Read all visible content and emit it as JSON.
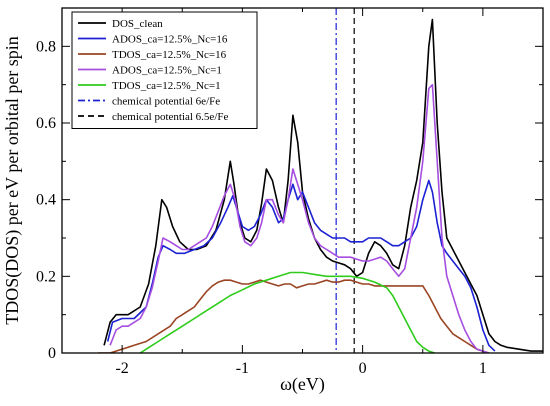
{
  "chart_data": {
    "type": "line",
    "xlabel": "ω(eV)",
    "ylabel": "TDOS(DOS) per eV per orbital per spin",
    "xlim": [
      -2.5,
      1.5
    ],
    "ylim": [
      0,
      0.9
    ],
    "xticks": [
      -2,
      -1,
      0,
      1
    ],
    "xtick_labels": [
      "-2",
      "-1",
      "0",
      "1"
    ],
    "yticks": [
      0,
      0.2,
      0.4,
      0.6,
      0.8
    ],
    "ytick_labels": [
      "0",
      "0.2",
      "0.4",
      "0.6",
      "0.8"
    ],
    "legend_position": "top-left",
    "grid": false,
    "series": [
      {
        "name": "DOS_clean",
        "color": "#000000",
        "dash": "solid",
        "x": [
          -2.15,
          -2.1,
          -2.05,
          -1.95,
          -1.85,
          -1.78,
          -1.72,
          -1.67,
          -1.63,
          -1.58,
          -1.52,
          -1.45,
          -1.38,
          -1.3,
          -1.22,
          -1.15,
          -1.1,
          -1.07,
          -1.03,
          -0.98,
          -0.93,
          -0.88,
          -0.84,
          -0.8,
          -0.75,
          -0.7,
          -0.66,
          -0.62,
          -0.58,
          -0.54,
          -0.5,
          -0.45,
          -0.4,
          -0.35,
          -0.3,
          -0.25,
          -0.2,
          -0.15,
          -0.1,
          -0.05,
          0.0,
          0.05,
          0.1,
          0.15,
          0.2,
          0.25,
          0.3,
          0.35,
          0.4,
          0.45,
          0.5,
          0.55,
          0.58,
          0.62,
          0.66,
          0.7,
          0.75,
          0.8,
          0.85,
          0.9,
          0.95,
          1.0,
          1.05,
          1.1,
          1.15,
          1.2,
          1.3,
          1.4,
          1.5
        ],
        "y": [
          0.02,
          0.08,
          0.1,
          0.1,
          0.12,
          0.18,
          0.28,
          0.4,
          0.38,
          0.33,
          0.29,
          0.27,
          0.27,
          0.28,
          0.32,
          0.4,
          0.5,
          0.44,
          0.35,
          0.3,
          0.29,
          0.32,
          0.39,
          0.48,
          0.45,
          0.38,
          0.34,
          0.45,
          0.62,
          0.55,
          0.42,
          0.35,
          0.3,
          0.27,
          0.25,
          0.24,
          0.235,
          0.23,
          0.22,
          0.2,
          0.21,
          0.26,
          0.29,
          0.28,
          0.26,
          0.23,
          0.22,
          0.28,
          0.38,
          0.45,
          0.55,
          0.8,
          0.87,
          0.6,
          0.42,
          0.3,
          0.27,
          0.24,
          0.21,
          0.18,
          0.15,
          0.1,
          0.05,
          0.03,
          0.02,
          0.015,
          0.01,
          0.005,
          0.005
        ]
      },
      {
        "name": "ADOS_ca=12.5%_Nc=16",
        "color": "#1c22d4",
        "dash": "solid",
        "x": [
          -2.12,
          -2.08,
          -2.0,
          -1.9,
          -1.8,
          -1.75,
          -1.7,
          -1.66,
          -1.6,
          -1.55,
          -1.48,
          -1.4,
          -1.32,
          -1.25,
          -1.18,
          -1.12,
          -1.08,
          -1.04,
          -1.0,
          -0.95,
          -0.9,
          -0.85,
          -0.8,
          -0.75,
          -0.7,
          -0.66,
          -0.62,
          -0.58,
          -0.54,
          -0.5,
          -0.45,
          -0.4,
          -0.35,
          -0.3,
          -0.25,
          -0.2,
          -0.15,
          -0.1,
          -0.05,
          0.0,
          0.05,
          0.1,
          0.15,
          0.2,
          0.25,
          0.3,
          0.35,
          0.4,
          0.45,
          0.5,
          0.55,
          0.58,
          0.62,
          0.66,
          0.7,
          0.75,
          0.8,
          0.85,
          0.9,
          0.95,
          1.0,
          1.05,
          1.1
        ],
        "y": [
          0.03,
          0.08,
          0.09,
          0.09,
          0.12,
          0.18,
          0.25,
          0.28,
          0.27,
          0.26,
          0.26,
          0.27,
          0.28,
          0.3,
          0.34,
          0.38,
          0.41,
          0.37,
          0.33,
          0.32,
          0.33,
          0.36,
          0.4,
          0.38,
          0.34,
          0.35,
          0.4,
          0.44,
          0.4,
          0.42,
          0.38,
          0.34,
          0.32,
          0.31,
          0.3,
          0.3,
          0.3,
          0.29,
          0.29,
          0.29,
          0.3,
          0.3,
          0.3,
          0.29,
          0.28,
          0.28,
          0.29,
          0.3,
          0.33,
          0.4,
          0.45,
          0.42,
          0.34,
          0.28,
          0.26,
          0.24,
          0.22,
          0.2,
          0.17,
          0.12,
          0.06,
          0.02,
          0.005
        ]
      },
      {
        "name": "TDOS_ca=12.5%_Nc=16",
        "color": "#9a4523",
        "dash": "solid",
        "x": [
          -2.2,
          -2.1,
          -2.0,
          -1.9,
          -1.8,
          -1.7,
          -1.6,
          -1.55,
          -1.5,
          -1.45,
          -1.4,
          -1.35,
          -1.3,
          -1.25,
          -1.2,
          -1.15,
          -1.1,
          -1.05,
          -1.0,
          -0.95,
          -0.9,
          -0.85,
          -0.8,
          -0.75,
          -0.7,
          -0.65,
          -0.6,
          -0.55,
          -0.5,
          -0.45,
          -0.4,
          -0.35,
          -0.3,
          -0.25,
          -0.2,
          -0.15,
          -0.1,
          -0.05,
          0.0,
          0.05,
          0.1,
          0.2,
          0.3,
          0.4,
          0.5,
          0.55,
          0.6,
          0.65,
          0.7,
          0.75,
          0.8,
          0.85,
          0.9,
          0.95,
          1.0,
          1.05
        ],
        "y": [
          0.0,
          0.0,
          0.01,
          0.02,
          0.03,
          0.05,
          0.07,
          0.09,
          0.1,
          0.11,
          0.12,
          0.14,
          0.16,
          0.175,
          0.185,
          0.19,
          0.19,
          0.185,
          0.18,
          0.18,
          0.185,
          0.19,
          0.185,
          0.18,
          0.175,
          0.18,
          0.18,
          0.17,
          0.175,
          0.18,
          0.18,
          0.185,
          0.19,
          0.185,
          0.185,
          0.19,
          0.19,
          0.185,
          0.18,
          0.18,
          0.175,
          0.175,
          0.175,
          0.175,
          0.175,
          0.15,
          0.12,
          0.09,
          0.07,
          0.05,
          0.04,
          0.03,
          0.02,
          0.01,
          0.005,
          0.0
        ]
      },
      {
        "name": "ADOS_ca=12.5%_Nc=1",
        "color": "#a64ee0",
        "dash": "solid",
        "x": [
          -2.1,
          -2.05,
          -2.0,
          -1.95,
          -1.9,
          -1.85,
          -1.8,
          -1.75,
          -1.7,
          -1.66,
          -1.6,
          -1.55,
          -1.5,
          -1.45,
          -1.4,
          -1.35,
          -1.3,
          -1.25,
          -1.2,
          -1.15,
          -1.1,
          -1.06,
          -1.02,
          -0.98,
          -0.93,
          -0.88,
          -0.84,
          -0.8,
          -0.75,
          -0.7,
          -0.66,
          -0.62,
          -0.58,
          -0.54,
          -0.5,
          -0.45,
          -0.4,
          -0.35,
          -0.3,
          -0.25,
          -0.2,
          -0.15,
          -0.1,
          -0.05,
          0.0,
          0.05,
          0.1,
          0.15,
          0.2,
          0.25,
          0.3,
          0.35,
          0.4,
          0.45,
          0.5,
          0.55,
          0.58,
          0.62,
          0.66,
          0.7,
          0.75,
          0.8,
          0.85,
          0.9,
          0.95,
          1.0,
          1.05
        ],
        "y": [
          0.02,
          0.06,
          0.07,
          0.07,
          0.08,
          0.09,
          0.12,
          0.17,
          0.24,
          0.3,
          0.29,
          0.28,
          0.27,
          0.27,
          0.28,
          0.29,
          0.3,
          0.33,
          0.37,
          0.41,
          0.44,
          0.4,
          0.33,
          0.29,
          0.28,
          0.3,
          0.34,
          0.4,
          0.4,
          0.36,
          0.34,
          0.4,
          0.48,
          0.44,
          0.4,
          0.34,
          0.3,
          0.28,
          0.27,
          0.26,
          0.25,
          0.25,
          0.25,
          0.245,
          0.24,
          0.24,
          0.245,
          0.25,
          0.24,
          0.22,
          0.2,
          0.22,
          0.3,
          0.38,
          0.5,
          0.69,
          0.7,
          0.5,
          0.3,
          0.2,
          0.15,
          0.1,
          0.06,
          0.03,
          0.01,
          0.005,
          0.0
        ]
      },
      {
        "name": "TDOS_ca=12.5%_Nc=1",
        "color": "#2fcc1c",
        "dash": "solid",
        "x": [
          -1.85,
          -1.8,
          -1.75,
          -1.7,
          -1.6,
          -1.5,
          -1.4,
          -1.3,
          -1.2,
          -1.1,
          -1.0,
          -0.9,
          -0.8,
          -0.7,
          -0.6,
          -0.5,
          -0.4,
          -0.3,
          -0.2,
          -0.1,
          0.0,
          0.1,
          0.2,
          0.25,
          0.3,
          0.35,
          0.4,
          0.45,
          0.5,
          0.55,
          0.6
        ],
        "y": [
          0.0,
          0.01,
          0.02,
          0.03,
          0.05,
          0.07,
          0.09,
          0.11,
          0.13,
          0.15,
          0.165,
          0.18,
          0.19,
          0.2,
          0.21,
          0.21,
          0.205,
          0.2,
          0.2,
          0.2,
          0.195,
          0.185,
          0.17,
          0.15,
          0.12,
          0.09,
          0.06,
          0.03,
          0.015,
          0.005,
          0.0
        ]
      }
    ],
    "reference_lines": [
      {
        "name": "chemical potential 6e/Fe",
        "x": -0.22,
        "color": "#1c22d4",
        "dash": "dashdot"
      },
      {
        "name": "chemical potential 6.5e/Fe",
        "x": -0.07,
        "color": "#000000",
        "dash": "dashed"
      }
    ]
  }
}
